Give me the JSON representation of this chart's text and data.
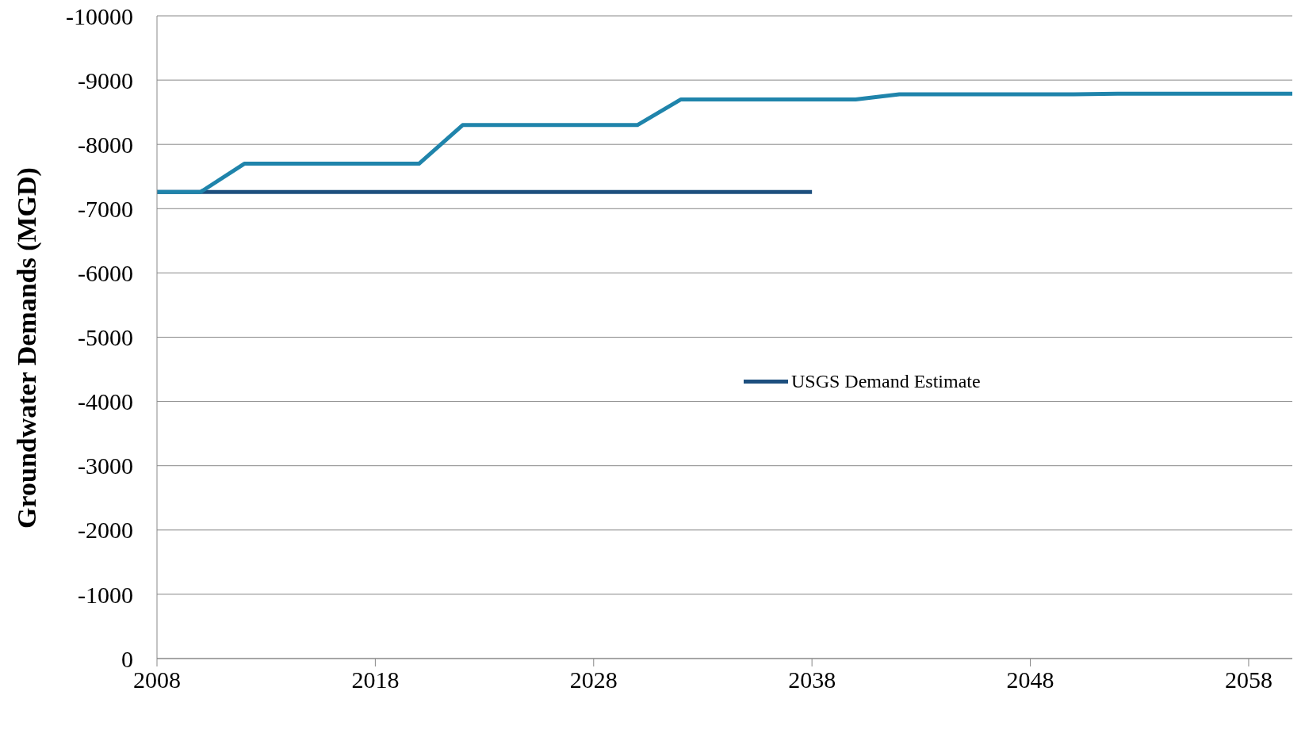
{
  "chart_data": {
    "type": "line",
    "ylabel": "Groundwater Demands (MGD)",
    "xlim": [
      2008,
      2060
    ],
    "xticks": [
      2008,
      2018,
      2028,
      2038,
      2048,
      2058
    ],
    "ylim": [
      0,
      -10000
    ],
    "yticks": [
      0,
      -1000,
      -2000,
      -3000,
      -4000,
      -5000,
      -6000,
      -7000,
      -8000,
      -9000,
      -10000
    ],
    "grid": "y",
    "legend": "center",
    "marker": "none",
    "line_style": "solid",
    "series": [
      {
        "name": "USGS Demand Estimate",
        "color": "#1d4f7e",
        "x": [
          2008,
          2038
        ],
        "values": [
          -7260,
          -7260
        ]
      },
      {
        "color": "#1f84ab",
        "x": [
          2008,
          2010,
          2012,
          2020,
          2022,
          2030,
          2032,
          2040,
          2042,
          2050,
          2052,
          2060
        ],
        "values": [
          -7260,
          -7260,
          -7700,
          -7700,
          -8300,
          -8300,
          -8700,
          -8700,
          -8780,
          -8780,
          -8790,
          -8790
        ]
      }
    ]
  }
}
